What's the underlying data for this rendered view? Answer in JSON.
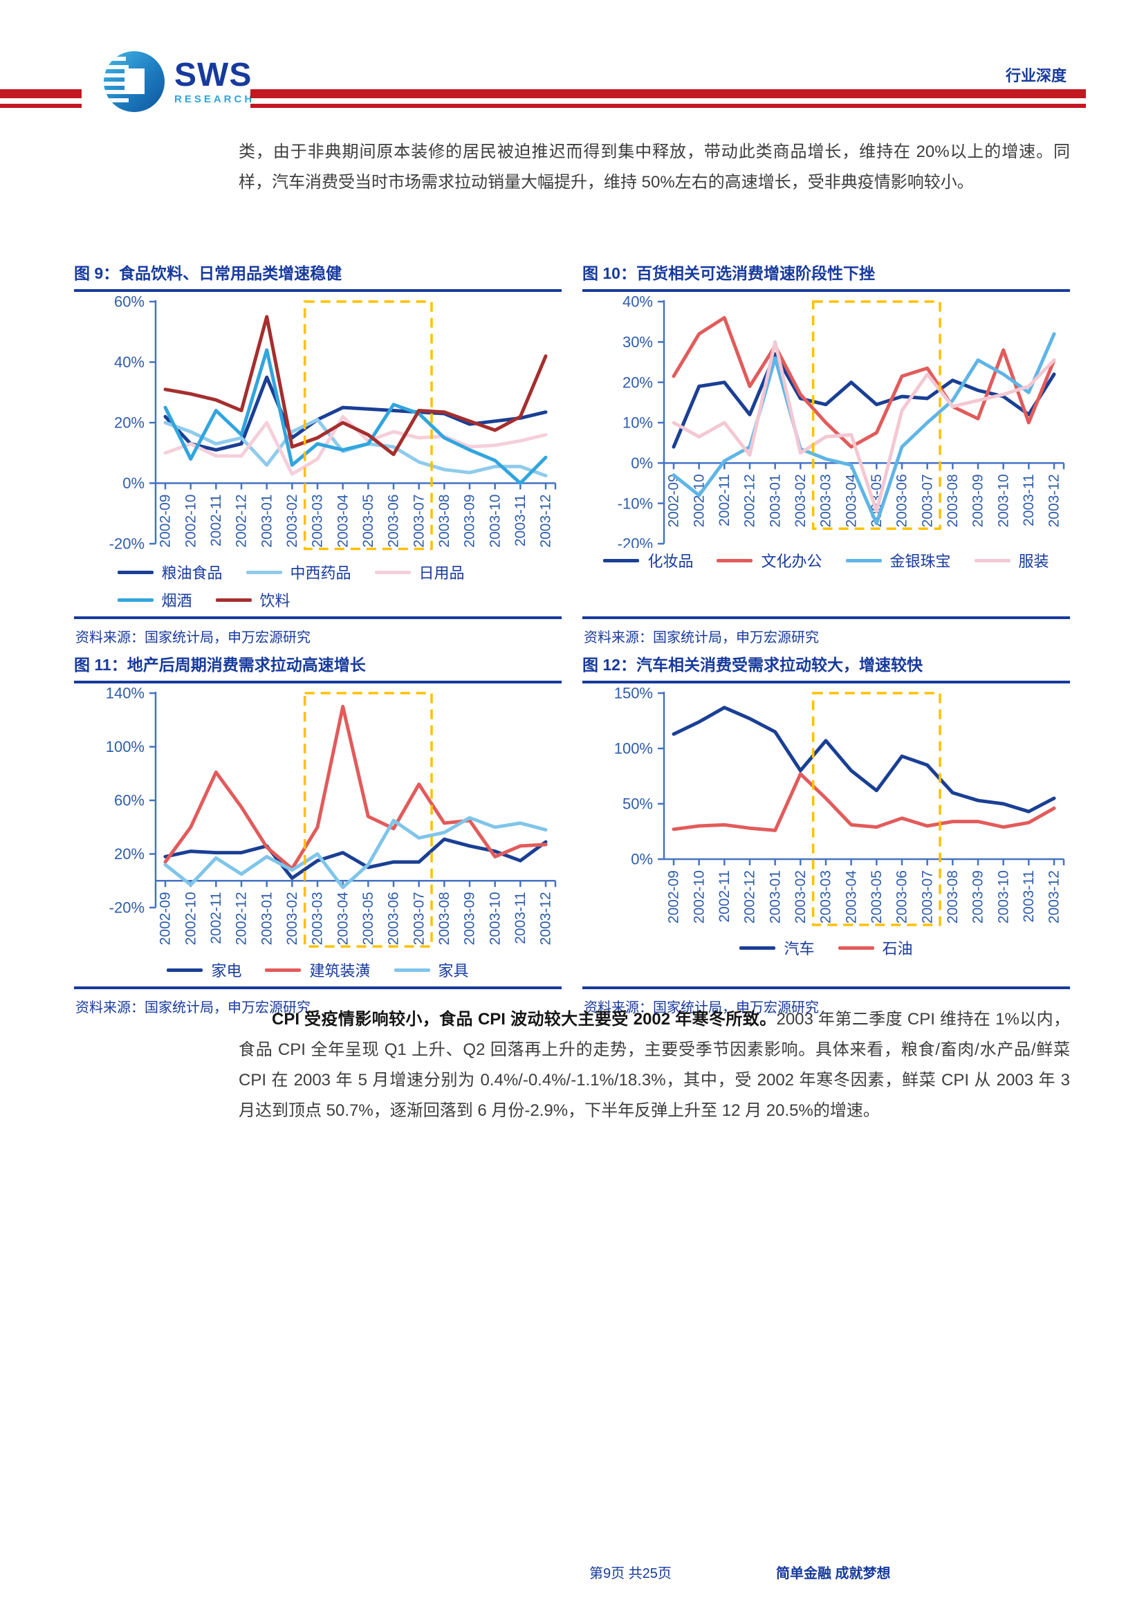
{
  "header": {
    "brand": "SWS",
    "brand_sub": "RESEARCH",
    "doc_type": "行业深度"
  },
  "intro_paragraph": "类，由于非典期间原本装修的居民被迫推迟而得到集中释放，带动此类商品增长，维持在 20%以上的增速。同样，汽车消费受当时市场需求拉动销量大幅提升，维持 50%左右的高速增长，受非典疫情影响较小。",
  "analysis_paragraph": {
    "lead": "CPI 受疫情影响较小，食品 CPI 波动较大主要受 2002 年寒冬所致。",
    "body": "2003 年第二季度 CPI 维持在 1%以内，食品 CPI 全年呈现 Q1 上升、Q2 回落再上升的走势，主要受季节因素影响。具体来看，粮食/畜肉/水产品/鲜菜 CPI 在 2003 年 5 月增速分别为 0.4%/-0.4%/-1.1%/18.3%，其中，受 2002 年寒冬因素，鲜菜 CPI 从 2003 年 3 月达到顶点 50.7%，逐渐回落到 6 月份-2.9%，下半年反弹上升至 12 月 20.5%的增速。"
  },
  "footer": {
    "page_info": "第9页 共25页",
    "slogan": "简单金融 成就梦想"
  },
  "colors": {
    "title_blue": "#173A9C",
    "axis_blue": "#4472C4",
    "tick_blue": "#2F5CA8",
    "red_bar": "#C2181F",
    "highlight_yellow": "#FFC000",
    "body_text": "#3D3D3D"
  },
  "figures": [
    {
      "title": "图 9：食品饮料、日常用品类增速稳健",
      "source": "资料来源：国家统计局，申万宏源研究",
      "chart_data": {
        "type": "line",
        "categories": [
          "2002-09",
          "2002-10",
          "2002-11",
          "2002-12",
          "2003-01",
          "2003-02",
          "2003-03",
          "2003-04",
          "2003-05",
          "2003-06",
          "2003-07",
          "2003-08",
          "2003-09",
          "2003-10",
          "2003-11",
          "2003-12"
        ],
        "series": [
          {
            "name": "粮油食品",
            "color": "#1A3F94",
            "values": [
              22,
              13,
              11,
              13,
              35,
              15,
              21,
              25,
              24.5,
              24,
              23.5,
              23,
              19.5,
              20.5,
              21.5,
              23.5
            ]
          },
          {
            "name": "中西药品",
            "color": "#8FCBEC",
            "values": [
              20,
              17,
              13,
              15,
              6,
              17,
              21,
              10.5,
              13,
              12,
              7,
              4.5,
              3.5,
              5.5,
              5.5,
              2.5
            ]
          },
          {
            "name": "日用品",
            "color": "#F5CFDA",
            "values": [
              10,
              13,
              9,
              9,
              20,
              3,
              8,
              22,
              14,
              17,
              15,
              15.5,
              12,
              12.5,
              14,
              16
            ]
          },
          {
            "name": "烟酒",
            "color": "#31A5DE",
            "values": [
              25,
              8,
              24,
              16,
              44,
              6,
              13,
              11,
              13,
              26,
              23,
              15,
              11,
              7.5,
              0,
              8.5
            ]
          },
          {
            "name": "饮料",
            "color": "#A52E2E",
            "values": [
              31,
              29.5,
              27.5,
              24,
              55,
              12,
              15,
              20,
              16,
              9.5,
              24,
              23.5,
              20.5,
              17.5,
              22,
              42
            ]
          }
        ],
        "ylim": [
          -20,
          60
        ],
        "yticks": [
          60,
          40,
          20,
          0,
          -20
        ],
        "grid": false,
        "legend_position": "bottom",
        "highlight_range": {
          "from": "2003-03",
          "to": "2003-07",
          "style": "dashed",
          "color": "#FFC000"
        }
      }
    },
    {
      "title": "图 10：百货相关可选消费增速阶段性下挫",
      "source": "资料来源：国家统计局，申万宏源研究",
      "chart_data": {
        "type": "line",
        "categories": [
          "2002-09",
          "2002-10",
          "2002-11",
          "2002-12",
          "2003-01",
          "2003-02",
          "2003-03",
          "2003-04",
          "2003-05",
          "2003-06",
          "2003-07",
          "2003-08",
          "2003-09",
          "2003-10",
          "2003-11",
          "2003-12"
        ],
        "series": [
          {
            "name": "化妆品",
            "color": "#1A3F94",
            "values": [
              4,
              19,
              20,
              12,
              27,
              16,
              14.5,
              20,
              14.5,
              16.5,
              16,
              20.5,
              18,
              16.5,
              12,
              22
            ]
          },
          {
            "name": "文化办公",
            "color": "#E25B5B",
            "values": [
              21.5,
              32,
              36,
              19,
              29,
              17,
              10,
              4,
              7.5,
              21.5,
              23.5,
              14,
              11,
              28,
              10,
              25.5
            ]
          },
          {
            "name": "金银珠宝",
            "color": "#5FB5E6",
            "values": [
              -3,
              -8,
              0.5,
              4,
              26,
              3.5,
              1,
              -0.5,
              -15,
              4,
              10,
              15.5,
              25.5,
              22,
              17.5,
              32
            ]
          },
          {
            "name": "服装",
            "color": "#F3C8D3",
            "values": [
              10,
              6.5,
              10,
              2,
              30,
              2.5,
              6.5,
              7,
              -12,
              13,
              22,
              14,
              15.5,
              17,
              19,
              25.5
            ]
          }
        ],
        "ylim": [
          -20,
          40
        ],
        "yticks": [
          40,
          30,
          20,
          10,
          0,
          -10,
          -20
        ],
        "grid": false,
        "legend_position": "bottom",
        "highlight_range": {
          "from": "2003-03",
          "to": "2003-07",
          "style": "dashed",
          "color": "#FFC000"
        }
      }
    },
    {
      "title": "图 11：地产后周期消费需求拉动高速增长",
      "source": "资料来源：国家统计局，申万宏源研究",
      "chart_data": {
        "type": "line",
        "categories": [
          "2002-09",
          "2002-10",
          "2002-11",
          "2002-12",
          "2003-01",
          "2003-02",
          "2003-03",
          "2003-04",
          "2003-05",
          "2003-06",
          "2003-07",
          "2003-08",
          "2003-09",
          "2003-10",
          "2003-11",
          "2003-12"
        ],
        "series": [
          {
            "name": "家电",
            "color": "#1A3F94",
            "values": [
              18,
              22,
              21,
              21,
              26,
              2,
              15,
              21,
              10,
              14,
              14,
              31,
              26,
              22,
              15,
              29
            ]
          },
          {
            "name": "建筑装潢",
            "color": "#E25B5B",
            "values": [
              14,
              40,
              81,
              55,
              25,
              9,
              40,
              130,
              48,
              39,
              72,
              43,
              45,
              18,
              26,
              27
            ]
          },
          {
            "name": "家具",
            "color": "#7FC5EA",
            "values": [
              12,
              -3,
              17,
              5,
              18,
              8,
              20,
              -5,
              12,
              45,
              32,
              36,
              47,
              40,
              43,
              38
            ]
          }
        ],
        "ylim": [
          -20,
          140
        ],
        "yticks": [
          140,
          100,
          60,
          20,
          -20
        ],
        "grid": false,
        "legend_position": "bottom",
        "highlight_range": {
          "from": "2003-03",
          "to": "2003-07",
          "style": "dashed",
          "color": "#FFC000"
        }
      }
    },
    {
      "title": "图 12：汽车相关消费受需求拉动较大，增速较快",
      "source": "资料来源：国家统计局，申万宏源研究",
      "chart_data": {
        "type": "line",
        "categories": [
          "2002-09",
          "2002-10",
          "2002-11",
          "2002-12",
          "2003-01",
          "2003-02",
          "2003-03",
          "2003-04",
          "2003-05",
          "2003-06",
          "2003-07",
          "2003-08",
          "2003-09",
          "2003-10",
          "2003-11",
          "2003-12"
        ],
        "series": [
          {
            "name": "汽车",
            "color": "#1A3F94",
            "values": [
              113,
              124,
              137,
              127,
              115,
              80,
              107,
              80,
              62,
              93,
              85,
              60,
              53,
              50,
              43,
              55
            ]
          },
          {
            "name": "石油",
            "color": "#E25B5B",
            "values": [
              27,
              30,
              31,
              28,
              26,
              77,
              55,
              31,
              29,
              37,
              30,
              34,
              34,
              29,
              33,
              46
            ]
          }
        ],
        "ylim": [
          0,
          150
        ],
        "yticks": [
          150,
          100,
          50,
          0
        ],
        "grid": false,
        "legend_position": "bottom",
        "highlight_range": {
          "from": "2003-03",
          "to": "2003-07",
          "style": "dashed",
          "color": "#FFC000"
        }
      }
    }
  ]
}
